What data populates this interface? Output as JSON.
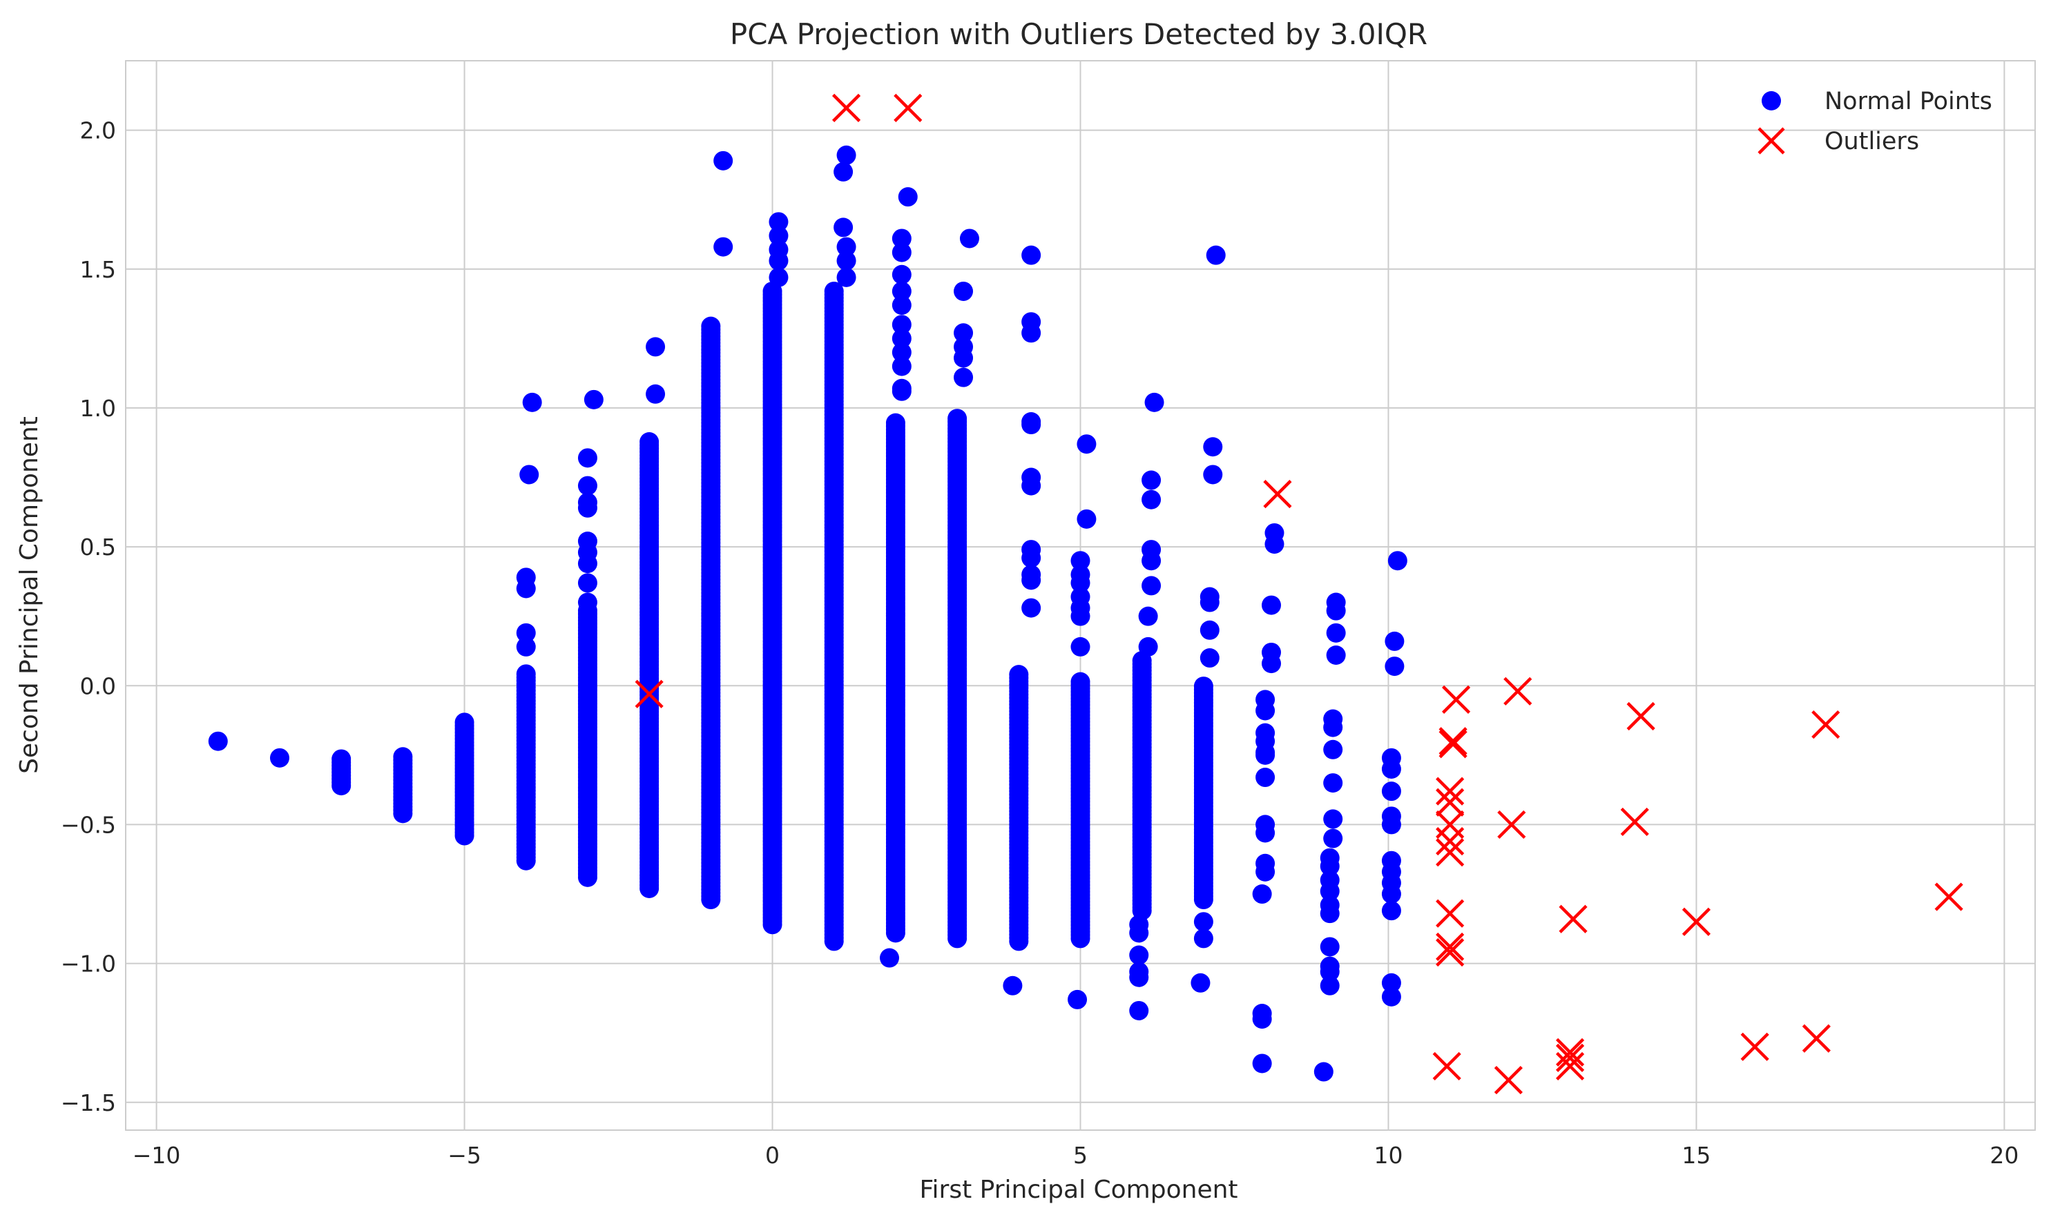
{
  "chart_data": {
    "type": "scatter",
    "title": "PCA Projection with Outliers Detected by 3.0IQR",
    "xlabel": "First Principal Component",
    "ylabel": "Second Principal Component",
    "xlim": [
      -10.5,
      20.5
    ],
    "ylim": [
      -1.6,
      2.25
    ],
    "grid": true,
    "legend_position": "top-right",
    "x_ticks": [
      -10,
      -5,
      0,
      5,
      10,
      15,
      20
    ],
    "x_tick_labels": [
      "−10",
      "−5",
      "0",
      "5",
      "10",
      "15",
      "20"
    ],
    "y_ticks": [
      -1.5,
      -1.0,
      -0.5,
      0.0,
      0.5,
      1.0,
      1.5,
      2.0
    ],
    "y_tick_labels": [
      "−1.5",
      "−1.0",
      "−0.5",
      "0.0",
      "0.5",
      "1.0",
      "1.5",
      "2.0"
    ],
    "series": [
      {
        "name": "Normal Points",
        "color": "#0000ff",
        "marker": "circle",
        "columns": [
          {
            "x": -9.0,
            "y_min": -0.2,
            "y_max": -0.2
          },
          {
            "x": -8.0,
            "y_min": -0.26,
            "y_max": -0.26
          },
          {
            "x": -7.0,
            "y_min": -0.36,
            "y_max": -0.26
          },
          {
            "x": -6.0,
            "y_min": -0.46,
            "y_max": -0.25
          },
          {
            "x": -5.0,
            "y_min": -0.54,
            "y_max": -0.13
          },
          {
            "x": -4.0,
            "y_min": -0.63,
            "y_max": 0.05
          },
          {
            "x": -3.0,
            "y_min": -0.69,
            "y_max": 0.28
          },
          {
            "x": -2.0,
            "y_min": -0.73,
            "y_max": 0.88
          },
          {
            "x": -1.0,
            "y_min": -0.77,
            "y_max": 1.3
          },
          {
            "x": 0.0,
            "y_min": -0.86,
            "y_max": 1.42
          },
          {
            "x": 1.0,
            "y_min": -0.92,
            "y_max": 1.42
          },
          {
            "x": 2.0,
            "y_min": -0.89,
            "y_max": 0.95
          },
          {
            "x": 3.0,
            "y_min": -0.91,
            "y_max": 0.97
          },
          {
            "x": 4.0,
            "y_min": -0.92,
            "y_max": 0.05
          },
          {
            "x": 5.0,
            "y_min": -0.91,
            "y_max": 0.02
          },
          {
            "x": 6.0,
            "y_min": -0.81,
            "y_max": 0.1
          },
          {
            "x": 7.0,
            "y_min": -0.77,
            "y_max": 0.0
          }
        ],
        "points": [
          {
            "x": -3.9,
            "y": 1.02
          },
          {
            "x": -3.95,
            "y": 0.76
          },
          {
            "x": -4.0,
            "y": 0.39
          },
          {
            "x": -4.0,
            "y": 0.35
          },
          {
            "x": -4.0,
            "y": 0.19
          },
          {
            "x": -4.0,
            "y": 0.14
          },
          {
            "x": -2.9,
            "y": 1.03
          },
          {
            "x": -3.0,
            "y": 0.82
          },
          {
            "x": -3.0,
            "y": 0.72
          },
          {
            "x": -3.0,
            "y": 0.66
          },
          {
            "x": -3.0,
            "y": 0.64
          },
          {
            "x": -3.0,
            "y": 0.52
          },
          {
            "x": -3.0,
            "y": 0.48
          },
          {
            "x": -3.0,
            "y": 0.44
          },
          {
            "x": -3.0,
            "y": 0.37
          },
          {
            "x": -3.0,
            "y": 0.3
          },
          {
            "x": -1.9,
            "y": 1.22
          },
          {
            "x": -1.9,
            "y": 1.05
          },
          {
            "x": -0.8,
            "y": 1.89
          },
          {
            "x": -0.8,
            "y": 1.58
          },
          {
            "x": 0.1,
            "y": 1.67
          },
          {
            "x": 0.1,
            "y": 1.62
          },
          {
            "x": 0.1,
            "y": 1.57
          },
          {
            "x": 0.1,
            "y": 1.53
          },
          {
            "x": 0.1,
            "y": 1.47
          },
          {
            "x": 1.2,
            "y": 1.91
          },
          {
            "x": 1.15,
            "y": 1.85
          },
          {
            "x": 1.15,
            "y": 1.65
          },
          {
            "x": 1.2,
            "y": 1.58
          },
          {
            "x": 1.2,
            "y": 1.53
          },
          {
            "x": 1.2,
            "y": 1.47
          },
          {
            "x": 2.2,
            "y": 1.76
          },
          {
            "x": 2.1,
            "y": 1.61
          },
          {
            "x": 2.1,
            "y": 1.56
          },
          {
            "x": 2.1,
            "y": 1.48
          },
          {
            "x": 2.1,
            "y": 1.42
          },
          {
            "x": 2.1,
            "y": 1.37
          },
          {
            "x": 2.1,
            "y": 1.3
          },
          {
            "x": 2.1,
            "y": 1.25
          },
          {
            "x": 2.1,
            "y": 1.2
          },
          {
            "x": 2.1,
            "y": 1.15
          },
          {
            "x": 2.1,
            "y": 1.07
          },
          {
            "x": 2.1,
            "y": 1.06
          },
          {
            "x": 1.9,
            "y": -0.98
          },
          {
            "x": 3.2,
            "y": 1.61
          },
          {
            "x": 3.1,
            "y": 1.42
          },
          {
            "x": 3.1,
            "y": 1.27
          },
          {
            "x": 3.1,
            "y": 1.22
          },
          {
            "x": 3.1,
            "y": 1.18
          },
          {
            "x": 3.1,
            "y": 1.11
          },
          {
            "x": 4.2,
            "y": 1.55
          },
          {
            "x": 4.2,
            "y": 1.31
          },
          {
            "x": 4.2,
            "y": 1.27
          },
          {
            "x": 4.2,
            "y": 0.95
          },
          {
            "x": 4.2,
            "y": 0.94
          },
          {
            "x": 4.2,
            "y": 0.75
          },
          {
            "x": 4.2,
            "y": 0.72
          },
          {
            "x": 4.2,
            "y": 0.49
          },
          {
            "x": 4.2,
            "y": 0.46
          },
          {
            "x": 4.2,
            "y": 0.4
          },
          {
            "x": 4.2,
            "y": 0.38
          },
          {
            "x": 4.2,
            "y": 0.28
          },
          {
            "x": 3.9,
            "y": -1.08
          },
          {
            "x": 5.1,
            "y": 0.87
          },
          {
            "x": 5.1,
            "y": 0.6
          },
          {
            "x": 5.0,
            "y": 0.45
          },
          {
            "x": 5.0,
            "y": 0.4
          },
          {
            "x": 5.0,
            "y": 0.37
          },
          {
            "x": 5.0,
            "y": 0.32
          },
          {
            "x": 5.0,
            "y": 0.28
          },
          {
            "x": 5.0,
            "y": 0.25
          },
          {
            "x": 5.0,
            "y": 0.14
          },
          {
            "x": 4.95,
            "y": -1.13
          },
          {
            "x": 6.2,
            "y": 1.02
          },
          {
            "x": 6.15,
            "y": 0.74
          },
          {
            "x": 6.15,
            "y": 0.67
          },
          {
            "x": 6.15,
            "y": 0.49
          },
          {
            "x": 6.15,
            "y": 0.45
          },
          {
            "x": 6.15,
            "y": 0.36
          },
          {
            "x": 6.1,
            "y": 0.25
          },
          {
            "x": 6.1,
            "y": 0.14
          },
          {
            "x": 5.95,
            "y": -0.86
          },
          {
            "x": 5.95,
            "y": -0.89
          },
          {
            "x": 5.95,
            "y": -0.97
          },
          {
            "x": 5.95,
            "y": -1.03
          },
          {
            "x": 5.95,
            "y": -1.05
          },
          {
            "x": 5.95,
            "y": -1.17
          },
          {
            "x": 7.2,
            "y": 1.55
          },
          {
            "x": 7.15,
            "y": 0.86
          },
          {
            "x": 7.15,
            "y": 0.76
          },
          {
            "x": 7.1,
            "y": 0.32
          },
          {
            "x": 7.1,
            "y": 0.3
          },
          {
            "x": 7.1,
            "y": 0.2
          },
          {
            "x": 7.1,
            "y": 0.1
          },
          {
            "x": 7.0,
            "y": -0.85
          },
          {
            "x": 7.0,
            "y": -0.91
          },
          {
            "x": 6.95,
            "y": -1.07
          },
          {
            "x": 8.15,
            "y": 0.55
          },
          {
            "x": 8.15,
            "y": 0.51
          },
          {
            "x": 8.1,
            "y": 0.29
          },
          {
            "x": 8.1,
            "y": 0.12
          },
          {
            "x": 8.1,
            "y": 0.08
          },
          {
            "x": 8.0,
            "y": -0.05
          },
          {
            "x": 8.0,
            "y": -0.09
          },
          {
            "x": 8.0,
            "y": -0.17
          },
          {
            "x": 8.0,
            "y": -0.2
          },
          {
            "x": 8.0,
            "y": -0.24
          },
          {
            "x": 8.0,
            "y": -0.25
          },
          {
            "x": 8.0,
            "y": -0.33
          },
          {
            "x": 8.0,
            "y": -0.5
          },
          {
            "x": 8.0,
            "y": -0.53
          },
          {
            "x": 8.0,
            "y": -0.64
          },
          {
            "x": 8.0,
            "y": -0.67
          },
          {
            "x": 7.95,
            "y": -0.75
          },
          {
            "x": 7.95,
            "y": -1.18
          },
          {
            "x": 7.95,
            "y": -1.2
          },
          {
            "x": 7.95,
            "y": -1.36
          },
          {
            "x": 9.15,
            "y": 0.3
          },
          {
            "x": 9.15,
            "y": 0.27
          },
          {
            "x": 9.15,
            "y": 0.19
          },
          {
            "x": 9.15,
            "y": 0.11
          },
          {
            "x": 9.1,
            "y": -0.12
          },
          {
            "x": 9.1,
            "y": -0.15
          },
          {
            "x": 9.1,
            "y": -0.23
          },
          {
            "x": 9.1,
            "y": -0.35
          },
          {
            "x": 9.1,
            "y": -0.48
          },
          {
            "x": 9.1,
            "y": -0.55
          },
          {
            "x": 9.05,
            "y": -0.62
          },
          {
            "x": 9.05,
            "y": -0.65
          },
          {
            "x": 9.05,
            "y": -0.7
          },
          {
            "x": 9.05,
            "y": -0.74
          },
          {
            "x": 9.05,
            "y": -0.79
          },
          {
            "x": 9.05,
            "y": -0.82
          },
          {
            "x": 9.05,
            "y": -0.94
          },
          {
            "x": 9.05,
            "y": -1.01
          },
          {
            "x": 9.05,
            "y": -1.03
          },
          {
            "x": 9.05,
            "y": -1.08
          },
          {
            "x": 8.95,
            "y": -1.39
          },
          {
            "x": 10.15,
            "y": 0.45
          },
          {
            "x": 10.1,
            "y": 0.16
          },
          {
            "x": 10.1,
            "y": 0.07
          },
          {
            "x": 10.05,
            "y": -0.26
          },
          {
            "x": 10.05,
            "y": -0.3
          },
          {
            "x": 10.05,
            "y": -0.38
          },
          {
            "x": 10.05,
            "y": -0.47
          },
          {
            "x": 10.05,
            "y": -0.5
          },
          {
            "x": 10.05,
            "y": -0.63
          },
          {
            "x": 10.05,
            "y": -0.67
          },
          {
            "x": 10.05,
            "y": -0.71
          },
          {
            "x": 10.05,
            "y": -0.75
          },
          {
            "x": 10.05,
            "y": -0.81
          },
          {
            "x": 10.05,
            "y": -1.07
          },
          {
            "x": 10.05,
            "y": -1.12
          }
        ]
      },
      {
        "name": "Outliers",
        "color": "#ff0000",
        "marker": "x",
        "points": [
          {
            "x": 1.2,
            "y": 2.08
          },
          {
            "x": 2.2,
            "y": 2.08
          },
          {
            "x": 8.2,
            "y": 0.69
          },
          {
            "x": -2.0,
            "y": -0.03
          },
          {
            "x": 11.1,
            "y": -0.05
          },
          {
            "x": 12.1,
            "y": -0.02
          },
          {
            "x": 11.05,
            "y": -0.2
          },
          {
            "x": 11.05,
            "y": -0.21
          },
          {
            "x": 14.1,
            "y": -0.11
          },
          {
            "x": 17.1,
            "y": -0.14
          },
          {
            "x": 11.0,
            "y": -0.38
          },
          {
            "x": 11.0,
            "y": -0.42
          },
          {
            "x": 11.0,
            "y": -0.5
          },
          {
            "x": 11.0,
            "y": -0.56
          },
          {
            "x": 11.0,
            "y": -0.6
          },
          {
            "x": 12.0,
            "y": -0.5
          },
          {
            "x": 14.0,
            "y": -0.49
          },
          {
            "x": 11.0,
            "y": -0.82
          },
          {
            "x": 11.0,
            "y": -0.94
          },
          {
            "x": 11.0,
            "y": -0.96
          },
          {
            "x": 13.0,
            "y": -0.84
          },
          {
            "x": 15.0,
            "y": -0.85
          },
          {
            "x": 19.1,
            "y": -0.76
          },
          {
            "x": 10.95,
            "y": -1.37
          },
          {
            "x": 11.95,
            "y": -1.42
          },
          {
            "x": 12.95,
            "y": -1.32
          },
          {
            "x": 12.95,
            "y": -1.34
          },
          {
            "x": 12.95,
            "y": -1.37
          },
          {
            "x": 15.95,
            "y": -1.3
          },
          {
            "x": 16.95,
            "y": -1.27
          }
        ]
      }
    ]
  }
}
